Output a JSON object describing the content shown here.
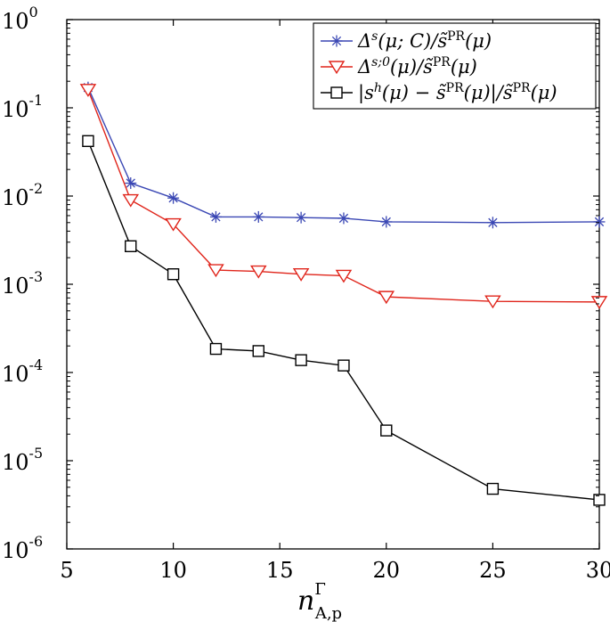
{
  "chart_data": {
    "type": "line",
    "yscale": "log",
    "xlim": [
      5,
      30
    ],
    "ylim": [
      1e-06,
      1
    ],
    "xticks": [
      5,
      10,
      15,
      20,
      25,
      30
    ],
    "xtick_labels": [
      "5",
      "10",
      "15",
      "20",
      "25",
      "30"
    ],
    "yticks": [
      1e-06,
      1e-05,
      0.0001,
      0.001,
      0.01,
      0.1,
      1
    ],
    "ytick_labels": [
      {
        "base": "10",
        "exp": "-6"
      },
      {
        "base": "10",
        "exp": "-5"
      },
      {
        "base": "10",
        "exp": "-4"
      },
      {
        "base": "10",
        "exp": "-3"
      },
      {
        "base": "10",
        "exp": "-2"
      },
      {
        "base": "10",
        "exp": "-1"
      },
      {
        "base": "10",
        "exp": "0"
      }
    ],
    "xlabel": {
      "main": "n",
      "sup": "Γ",
      "sub": "A,p"
    },
    "ylabel": "",
    "title": "",
    "grid": false,
    "legend_position": "top-right",
    "x": [
      6,
      8,
      10,
      12,
      14,
      16,
      18,
      20,
      25,
      30
    ],
    "series": [
      {
        "name": "Δs(μ;C)/s̃PR(μ)",
        "legend_label": "Δ^s(μ; C)/s̃^PR(μ)",
        "color": "#3a47b4",
        "marker": "asterisk",
        "values": [
          0.17,
          0.014,
          0.0095,
          0.0058,
          0.0058,
          0.0057,
          0.0056,
          0.0051,
          0.005,
          0.0051
        ]
      },
      {
        "name": "Δs;0(μ)/s̃PR(μ)",
        "legend_label": "Δ^{s;0}(μ)/s̃^PR(μ)",
        "color": "#e0251b",
        "marker": "triangle-down",
        "values": [
          0.16,
          0.009,
          0.0048,
          0.00145,
          0.0014,
          0.0013,
          0.00125,
          0.00072,
          0.00064,
          0.00063
        ]
      },
      {
        "name": "|sh(μ)−s̃PR(μ)|/s̃PR(μ)",
        "legend_label": "|s^h(μ) − s̃^PR(μ)|/s̃^PR(μ)",
        "color": "#000000",
        "marker": "square",
        "values": [
          0.042,
          0.0027,
          0.0013,
          0.000185,
          0.000175,
          0.000138,
          0.00012,
          2.2e-05,
          4.8e-06,
          3.6e-06
        ]
      }
    ]
  },
  "colors": {
    "axis": "#000000",
    "background": "#ffffff"
  }
}
